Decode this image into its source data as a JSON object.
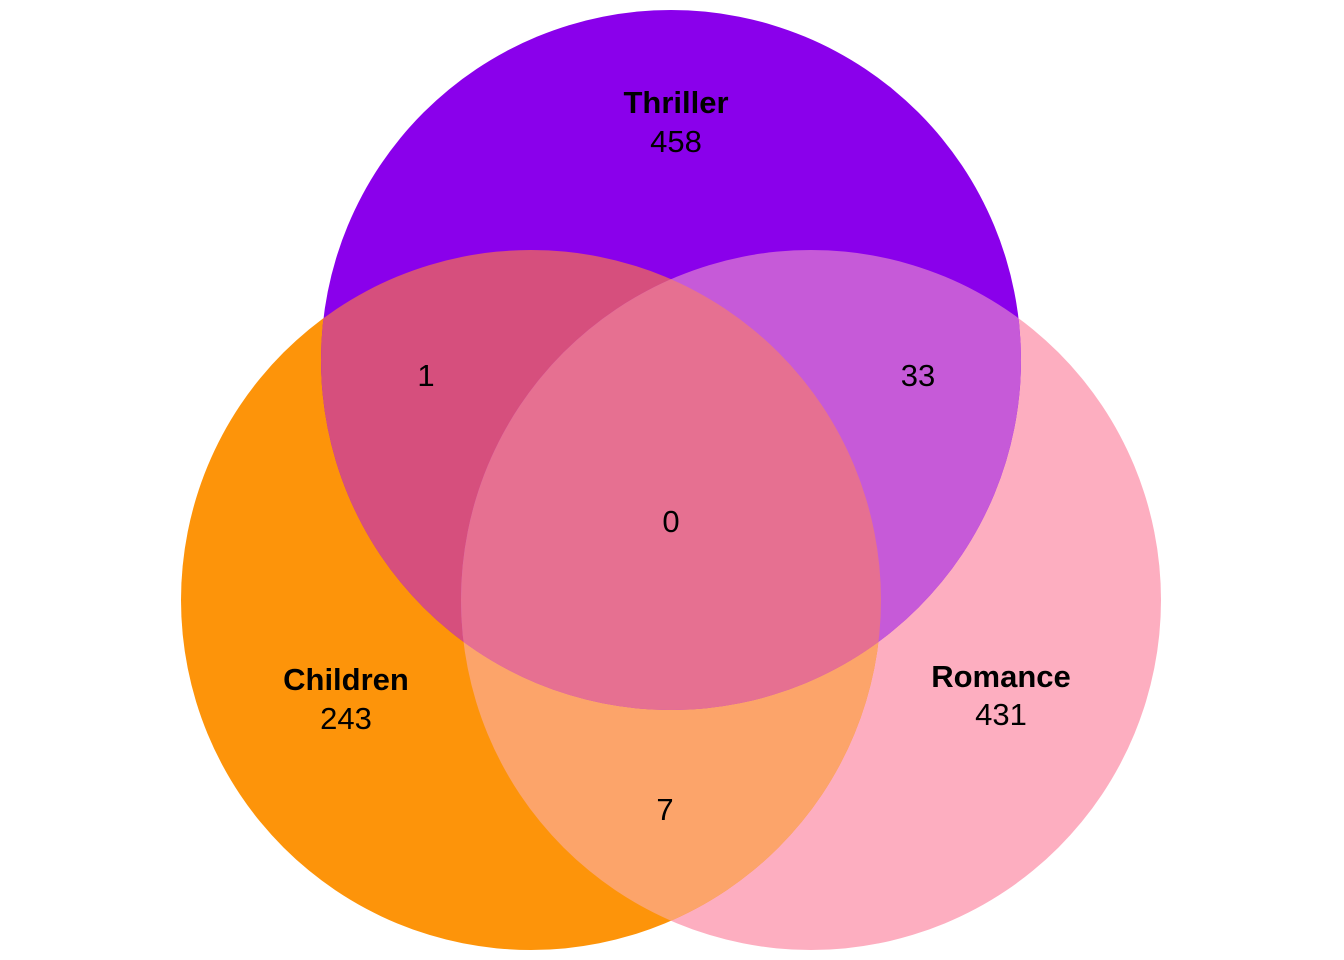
{
  "diagram": {
    "type": "venn3",
    "sets": [
      {
        "id": "thriller",
        "name": "Thriller",
        "only_count": "458",
        "color": "#8a00eb"
      },
      {
        "id": "children",
        "name": "Children",
        "only_count": "243",
        "color": "#fd940a"
      },
      {
        "id": "romance",
        "name": "Romance",
        "only_count": "431",
        "color": "#fdaec0"
      }
    ],
    "intersections": {
      "thriller_children": "1",
      "thriller_romance": "33",
      "children_romance": "7",
      "all_three": "0"
    },
    "overlap_colors": {
      "thriller_children": "#d64f7d",
      "thriller_romance": "#c65ad8",
      "children_romance": "#fca46a",
      "all_three": "#e67091"
    }
  }
}
